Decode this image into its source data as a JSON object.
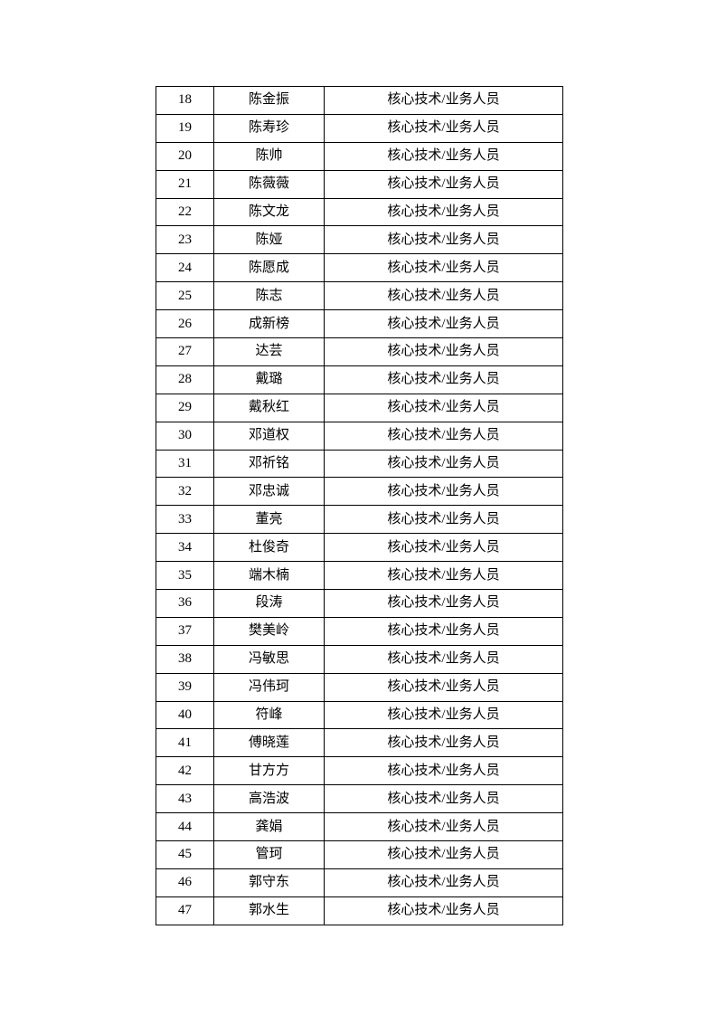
{
  "page": {
    "background_color": "#ffffff",
    "text_color": "#000000",
    "border_color": "#000000"
  },
  "table": {
    "role_label": "核心技术/业务人员",
    "rows": [
      {
        "index": "18",
        "name": "陈金振",
        "role": "核心技术/业务人员"
      },
      {
        "index": "19",
        "name": "陈寿珍",
        "role": "核心技术/业务人员"
      },
      {
        "index": "20",
        "name": "陈帅",
        "role": "核心技术/业务人员"
      },
      {
        "index": "21",
        "name": "陈薇薇",
        "role": "核心技术/业务人员"
      },
      {
        "index": "22",
        "name": "陈文龙",
        "role": "核心技术/业务人员"
      },
      {
        "index": "23",
        "name": "陈娅",
        "role": "核心技术/业务人员"
      },
      {
        "index": "24",
        "name": "陈愿成",
        "role": "核心技术/业务人员"
      },
      {
        "index": "25",
        "name": "陈志",
        "role": "核心技术/业务人员"
      },
      {
        "index": "26",
        "name": "成新榜",
        "role": "核心技术/业务人员"
      },
      {
        "index": "27",
        "name": "达芸",
        "role": "核心技术/业务人员"
      },
      {
        "index": "28",
        "name": "戴璐",
        "role": "核心技术/业务人员"
      },
      {
        "index": "29",
        "name": "戴秋红",
        "role": "核心技术/业务人员"
      },
      {
        "index": "30",
        "name": "邓道权",
        "role": "核心技术/业务人员"
      },
      {
        "index": "31",
        "name": "邓祈铭",
        "role": "核心技术/业务人员"
      },
      {
        "index": "32",
        "name": "邓忠诚",
        "role": "核心技术/业务人员"
      },
      {
        "index": "33",
        "name": "董亮",
        "role": "核心技术/业务人员"
      },
      {
        "index": "34",
        "name": "杜俊奇",
        "role": "核心技术/业务人员"
      },
      {
        "index": "35",
        "name": "端木楠",
        "role": "核心技术/业务人员"
      },
      {
        "index": "36",
        "name": "段涛",
        "role": "核心技术/业务人员"
      },
      {
        "index": "37",
        "name": "樊美岭",
        "role": "核心技术/业务人员"
      },
      {
        "index": "38",
        "name": "冯敏思",
        "role": "核心技术/业务人员"
      },
      {
        "index": "39",
        "name": "冯伟珂",
        "role": "核心技术/业务人员"
      },
      {
        "index": "40",
        "name": "符峰",
        "role": "核心技术/业务人员"
      },
      {
        "index": "41",
        "name": "傅晓莲",
        "role": "核心技术/业务人员"
      },
      {
        "index": "42",
        "name": "甘方方",
        "role": "核心技术/业务人员"
      },
      {
        "index": "43",
        "name": "高浩波",
        "role": "核心技术/业务人员"
      },
      {
        "index": "44",
        "name": "龚娟",
        "role": "核心技术/业务人员"
      },
      {
        "index": "45",
        "name": "管珂",
        "role": "核心技术/业务人员"
      },
      {
        "index": "46",
        "name": "郭守东",
        "role": "核心技术/业务人员"
      },
      {
        "index": "47",
        "name": "郭水生",
        "role": "核心技术/业务人员"
      }
    ]
  }
}
